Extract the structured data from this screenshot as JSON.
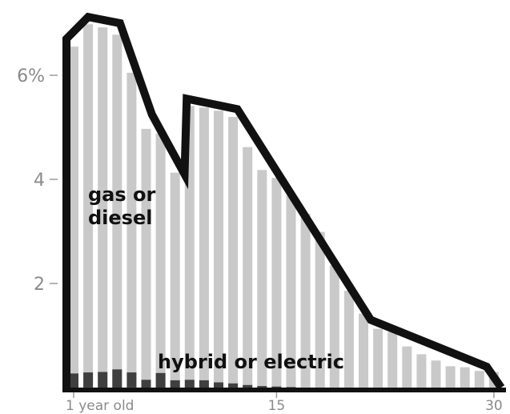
{
  "chart_data": {
    "type": "bar",
    "x_tick_labels": [
      "1 year old",
      "15",
      "30"
    ],
    "y_tick_labels": [
      "2",
      "4",
      "6%"
    ],
    "y_ticks": [
      2,
      4,
      6
    ],
    "ylim": [
      0,
      7.4
    ],
    "x": [
      1,
      2,
      3,
      4,
      5,
      6,
      7,
      8,
      9,
      10,
      11,
      12,
      13,
      14,
      15,
      16,
      17,
      18,
      19,
      20,
      21,
      22,
      23,
      24,
      25,
      26,
      27,
      28,
      29,
      30
    ],
    "series": [
      {
        "name": "gas or diesel",
        "values": [
          6.55,
          6.98,
          6.92,
          6.78,
          6.05,
          4.97,
          4.88,
          4.13,
          5.41,
          5.38,
          5.32,
          5.2,
          4.62,
          4.18,
          4.03,
          3.69,
          3.34,
          2.99,
          2.35,
          1.86,
          1.42,
          1.13,
          1.07,
          0.79,
          0.64,
          0.52,
          0.41,
          0.39,
          0.32,
          0.3
        ],
        "color": "#c9c9c9"
      },
      {
        "name": "hybrid or electric",
        "values": [
          0.27,
          0.29,
          0.3,
          0.35,
          0.29,
          0.15,
          0.28,
          0.14,
          0.15,
          0.14,
          0.1,
          0.08,
          0.05,
          0.03,
          0.02,
          0.01,
          0,
          0,
          0,
          0,
          0,
          0,
          0,
          0,
          0,
          0,
          0,
          0,
          0,
          0
        ],
        "color": "#3f3f3f"
      }
    ],
    "outline_color": "#111111",
    "outline": [
      [
        0.5,
        0
      ],
      [
        0.5,
        6.7
      ],
      [
        2,
        7.12
      ],
      [
        4.2,
        7.0
      ],
      [
        6.4,
        5.25
      ],
      [
        8.65,
        4.1
      ],
      [
        8.8,
        5.55
      ],
      [
        12.3,
        5.35
      ],
      [
        21.5,
        1.3
      ],
      [
        29.5,
        0.4
      ],
      [
        30.5,
        0
      ]
    ]
  }
}
